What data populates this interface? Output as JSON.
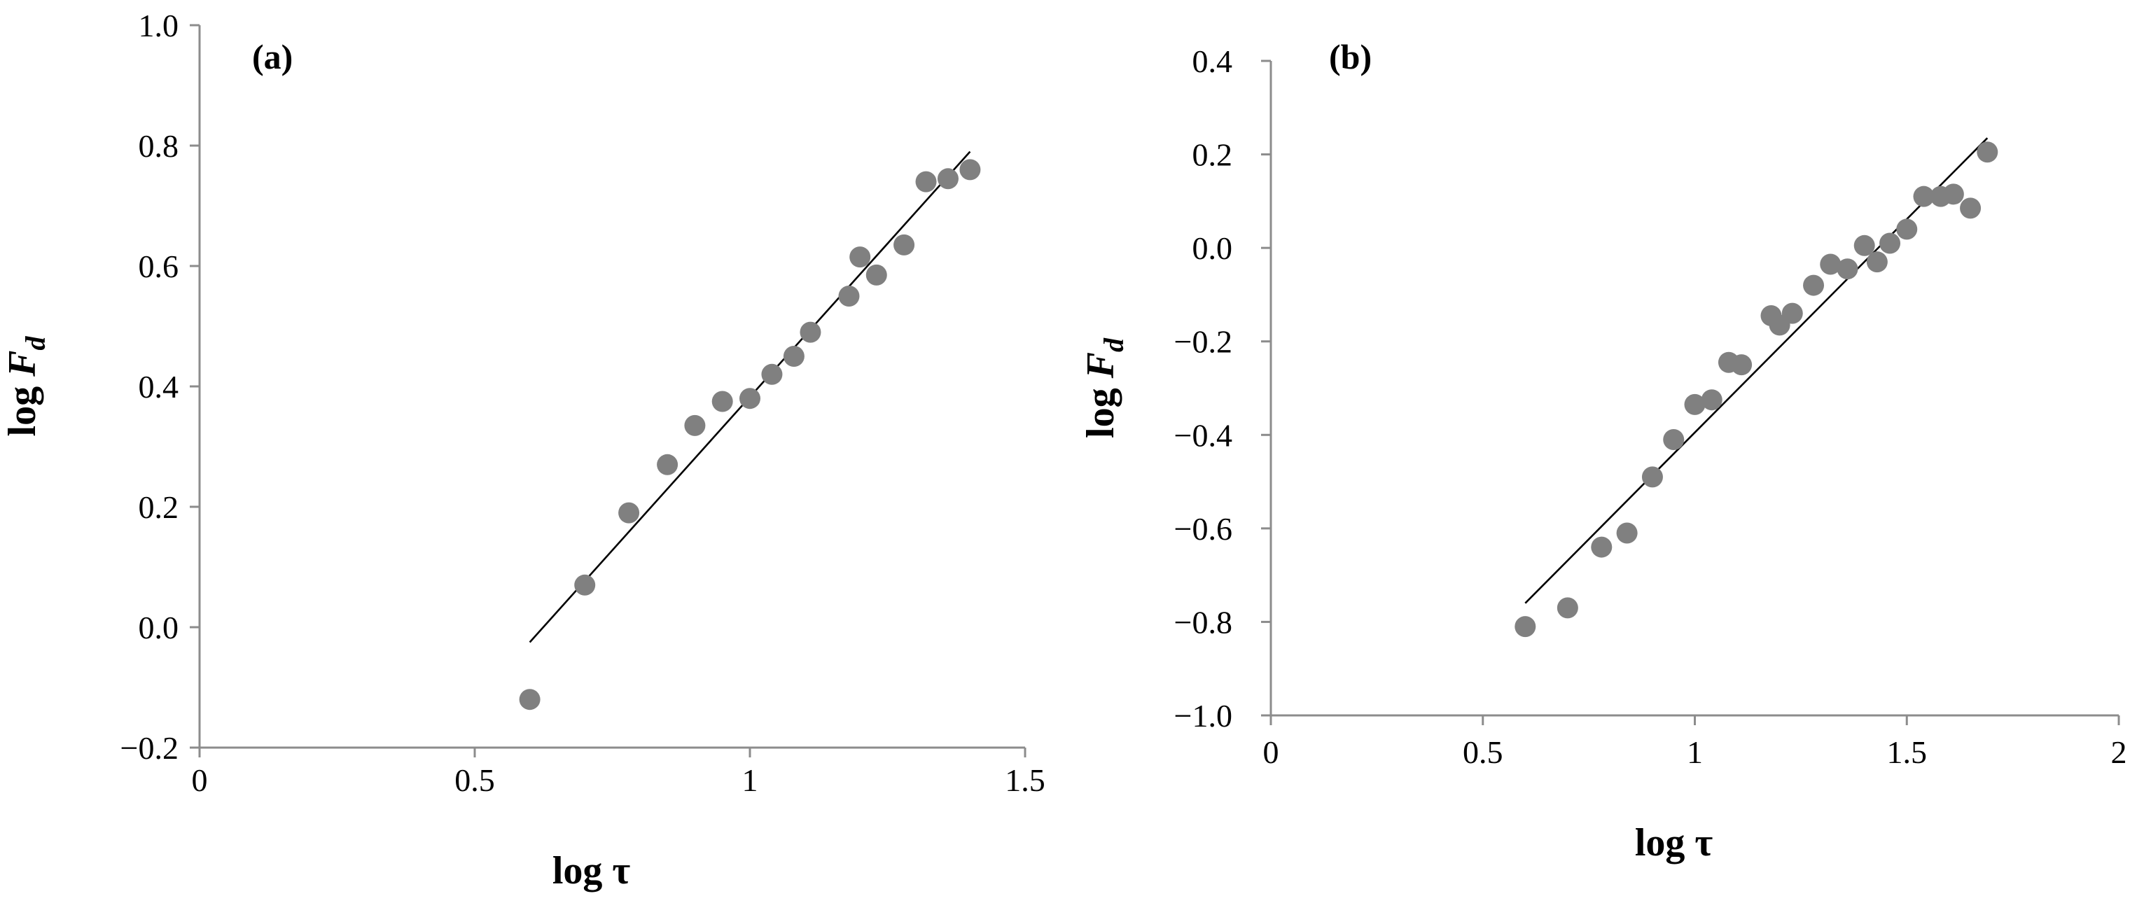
{
  "chart_data": [
    {
      "type": "scatter",
      "panel_label": "(a)",
      "xlabel": "log τ",
      "ylabel_prefix": "log ",
      "ylabel_var": "F",
      "ylabel_sub": "d",
      "xlim": [
        0,
        1.5
      ],
      "ylim": [
        -0.2,
        1.0
      ],
      "xticks": [
        0,
        0.5,
        1,
        1.5
      ],
      "xtick_labels": [
        "0",
        "0.5",
        "1",
        "1.5"
      ],
      "yticks": [
        -0.2,
        0.0,
        0.2,
        0.4,
        0.6,
        0.8,
        1.0
      ],
      "ytick_labels": [
        "−0.2",
        "0.0",
        "0.2",
        "0.4",
        "0.6",
        "0.8",
        "1.0"
      ],
      "grid": false,
      "marker_color": "#808080",
      "points": [
        [
          0.6,
          -0.12
        ],
        [
          0.7,
          0.07
        ],
        [
          0.78,
          0.19
        ],
        [
          0.85,
          0.27
        ],
        [
          0.9,
          0.335
        ],
        [
          0.95,
          0.375
        ],
        [
          1.0,
          0.38
        ],
        [
          1.04,
          0.42
        ],
        [
          1.08,
          0.45
        ],
        [
          1.11,
          0.49
        ],
        [
          1.18,
          0.55
        ],
        [
          1.2,
          0.615
        ],
        [
          1.23,
          0.585
        ],
        [
          1.28,
          0.635
        ],
        [
          1.32,
          0.74
        ],
        [
          1.36,
          0.745
        ],
        [
          1.4,
          0.76
        ]
      ],
      "fit_line": [
        [
          0.6,
          -0.025
        ],
        [
          1.4,
          0.79
        ]
      ]
    },
    {
      "type": "scatter",
      "panel_label": "(b)",
      "xlabel": "log τ",
      "ylabel_prefix": "log ",
      "ylabel_var": "F",
      "ylabel_sub": "d",
      "xlim": [
        0,
        2
      ],
      "ylim": [
        -1.0,
        0.4
      ],
      "xticks": [
        0,
        0.5,
        1,
        1.5,
        2
      ],
      "xtick_labels": [
        "0",
        "0.5",
        "1",
        "1.5",
        "2"
      ],
      "yticks": [
        -1.0,
        -0.8,
        -0.6,
        -0.4,
        -0.2,
        0.0,
        0.2,
        0.4
      ],
      "ytick_labels": [
        "−1.0",
        "−0.8",
        "−0.6",
        "−0.4",
        "−0.2",
        "0.0",
        "0.2",
        "0.4"
      ],
      "grid": false,
      "marker_color": "#808080",
      "points": [
        [
          0.6,
          -0.81
        ],
        [
          0.7,
          -0.77
        ],
        [
          0.78,
          -0.64
        ],
        [
          0.84,
          -0.61
        ],
        [
          0.9,
          -0.49
        ],
        [
          0.95,
          -0.41
        ],
        [
          1.0,
          -0.335
        ],
        [
          1.04,
          -0.325
        ],
        [
          1.08,
          -0.245
        ],
        [
          1.11,
          -0.25
        ],
        [
          1.18,
          -0.145
        ],
        [
          1.2,
          -0.165
        ],
        [
          1.23,
          -0.14
        ],
        [
          1.28,
          -0.08
        ],
        [
          1.32,
          -0.035
        ],
        [
          1.36,
          -0.045
        ],
        [
          1.4,
          0.005
        ],
        [
          1.43,
          -0.03
        ],
        [
          1.46,
          0.01
        ],
        [
          1.5,
          0.04
        ],
        [
          1.54,
          0.11
        ],
        [
          1.58,
          0.11
        ],
        [
          1.61,
          0.115
        ],
        [
          1.65,
          0.085
        ],
        [
          1.69,
          0.205
        ]
      ],
      "fit_line": [
        [
          0.6,
          -0.76
        ],
        [
          1.69,
          0.235
        ]
      ]
    }
  ]
}
